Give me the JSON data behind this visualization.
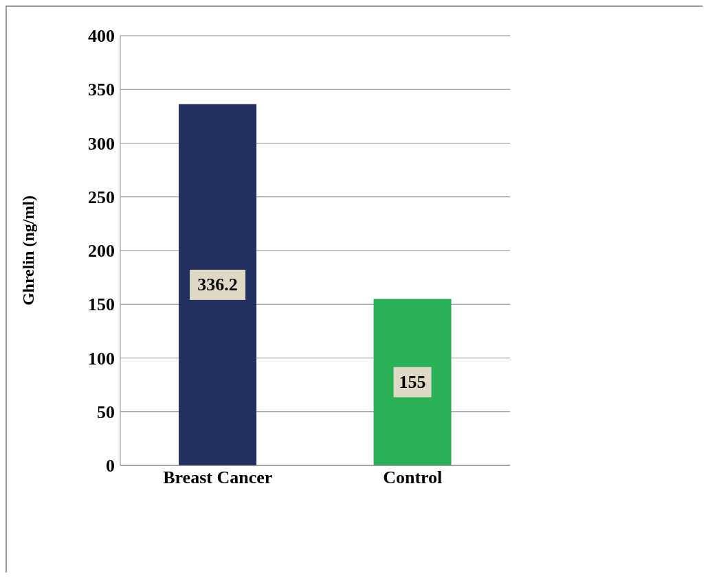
{
  "chart_data": {
    "type": "bar",
    "categories": [
      "Breast Cancer",
      "Control"
    ],
    "values": [
      336.2,
      155
    ],
    "colors": [
      "#203060",
      "#2bb155"
    ],
    "ylabel": "Ghrelin  (ng/ml)",
    "ylim": [
      0,
      400
    ],
    "yticks": [
      0,
      50,
      100,
      150,
      200,
      250,
      300,
      350,
      400
    ],
    "grid": "y",
    "data_labels": true
  }
}
